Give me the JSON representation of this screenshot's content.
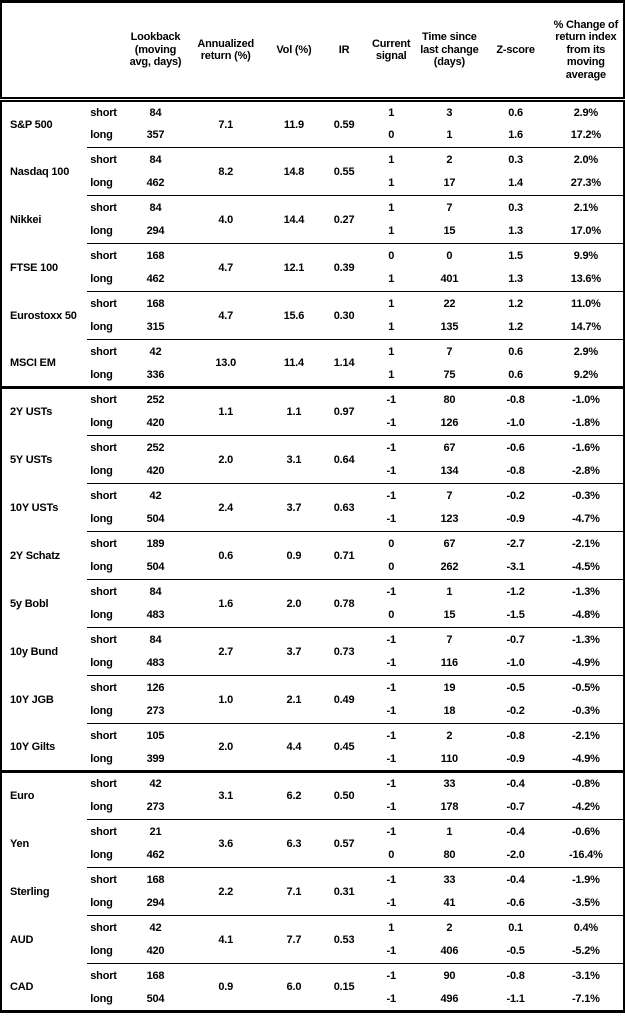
{
  "table": {
    "columns": [
      "",
      "",
      "Lookback (moving avg, days)",
      "Annualized return (%)",
      "Vol (%)",
      "IR",
      "Current signal",
      "Time since last change (days)",
      "Z-score",
      "% Change of return index from its moving average"
    ],
    "sections": [
      {
        "assets": [
          {
            "name": "S&P 500",
            "annualized_return": "7.1",
            "vol": "11.9",
            "ir": "0.59",
            "rows": [
              {
                "horizon": "short",
                "lookback": "84",
                "signal": "1",
                "time_since": "3",
                "z_score": "0.6",
                "pct_change": "2.9%"
              },
              {
                "horizon": "long",
                "lookback": "357",
                "signal": "0",
                "time_since": "1",
                "z_score": "1.6",
                "pct_change": "17.2%"
              }
            ]
          },
          {
            "name": "Nasdaq 100",
            "annualized_return": "8.2",
            "vol": "14.8",
            "ir": "0.55",
            "rows": [
              {
                "horizon": "short",
                "lookback": "84",
                "signal": "1",
                "time_since": "2",
                "z_score": "0.3",
                "pct_change": "2.0%"
              },
              {
                "horizon": "long",
                "lookback": "462",
                "signal": "1",
                "time_since": "17",
                "z_score": "1.4",
                "pct_change": "27.3%"
              }
            ]
          },
          {
            "name": "Nikkei",
            "annualized_return": "4.0",
            "vol": "14.4",
            "ir": "0.27",
            "rows": [
              {
                "horizon": "short",
                "lookback": "84",
                "signal": "1",
                "time_since": "7",
                "z_score": "0.3",
                "pct_change": "2.1%"
              },
              {
                "horizon": "long",
                "lookback": "294",
                "signal": "1",
                "time_since": "15",
                "z_score": "1.3",
                "pct_change": "17.0%"
              }
            ]
          },
          {
            "name": "FTSE 100",
            "annualized_return": "4.7",
            "vol": "12.1",
            "ir": "0.39",
            "rows": [
              {
                "horizon": "short",
                "lookback": "168",
                "signal": "0",
                "time_since": "0",
                "z_score": "1.5",
                "pct_change": "9.9%"
              },
              {
                "horizon": "long",
                "lookback": "462",
                "signal": "1",
                "time_since": "401",
                "z_score": "1.3",
                "pct_change": "13.6%"
              }
            ]
          },
          {
            "name": "Eurostoxx 50",
            "annualized_return": "4.7",
            "vol": "15.6",
            "ir": "0.30",
            "rows": [
              {
                "horizon": "short",
                "lookback": "168",
                "signal": "1",
                "time_since": "22",
                "z_score": "1.2",
                "pct_change": "11.0%"
              },
              {
                "horizon": "long",
                "lookback": "315",
                "signal": "1",
                "time_since": "135",
                "z_score": "1.2",
                "pct_change": "14.7%"
              }
            ]
          },
          {
            "name": "MSCI EM",
            "annualized_return": "13.0",
            "vol": "11.4",
            "ir": "1.14",
            "rows": [
              {
                "horizon": "short",
                "lookback": "42",
                "signal": "1",
                "time_since": "7",
                "z_score": "0.6",
                "pct_change": "2.9%"
              },
              {
                "horizon": "long",
                "lookback": "336",
                "signal": "1",
                "time_since": "75",
                "z_score": "0.6",
                "pct_change": "9.2%"
              }
            ]
          }
        ]
      },
      {
        "assets": [
          {
            "name": "2Y USTs",
            "annualized_return": "1.1",
            "vol": "1.1",
            "ir": "0.97",
            "rows": [
              {
                "horizon": "short",
                "lookback": "252",
                "signal": "-1",
                "time_since": "80",
                "z_score": "-0.8",
                "pct_change": "-1.0%"
              },
              {
                "horizon": "long",
                "lookback": "420",
                "signal": "-1",
                "time_since": "126",
                "z_score": "-1.0",
                "pct_change": "-1.8%"
              }
            ]
          },
          {
            "name": "5Y USTs",
            "annualized_return": "2.0",
            "vol": "3.1",
            "ir": "0.64",
            "rows": [
              {
                "horizon": "short",
                "lookback": "252",
                "signal": "-1",
                "time_since": "67",
                "z_score": "-0.6",
                "pct_change": "-1.6%"
              },
              {
                "horizon": "long",
                "lookback": "420",
                "signal": "-1",
                "time_since": "134",
                "z_score": "-0.8",
                "pct_change": "-2.8%"
              }
            ]
          },
          {
            "name": "10Y USTs",
            "annualized_return": "2.4",
            "vol": "3.7",
            "ir": "0.63",
            "rows": [
              {
                "horizon": "short",
                "lookback": "42",
                "signal": "-1",
                "time_since": "7",
                "z_score": "-0.2",
                "pct_change": "-0.3%"
              },
              {
                "horizon": "long",
                "lookback": "504",
                "signal": "-1",
                "time_since": "123",
                "z_score": "-0.9",
                "pct_change": "-4.7%"
              }
            ]
          },
          {
            "name": "2Y Schatz",
            "annualized_return": "0.6",
            "vol": "0.9",
            "ir": "0.71",
            "rows": [
              {
                "horizon": "short",
                "lookback": "189",
                "signal": "0",
                "time_since": "67",
                "z_score": "-2.7",
                "pct_change": "-2.1%"
              },
              {
                "horizon": "long",
                "lookback": "504",
                "signal": "0",
                "time_since": "262",
                "z_score": "-3.1",
                "pct_change": "-4.5%"
              }
            ]
          },
          {
            "name": "5y Bobl",
            "annualized_return": "1.6",
            "vol": "2.0",
            "ir": "0.78",
            "rows": [
              {
                "horizon": "short",
                "lookback": "84",
                "signal": "-1",
                "time_since": "1",
                "z_score": "-1.2",
                "pct_change": "-1.3%"
              },
              {
                "horizon": "long",
                "lookback": "483",
                "signal": "0",
                "time_since": "15",
                "z_score": "-1.5",
                "pct_change": "-4.8%"
              }
            ]
          },
          {
            "name": "10y Bund",
            "annualized_return": "2.7",
            "vol": "3.7",
            "ir": "0.73",
            "rows": [
              {
                "horizon": "short",
                "lookback": "84",
                "signal": "-1",
                "time_since": "7",
                "z_score": "-0.7",
                "pct_change": "-1.3%"
              },
              {
                "horizon": "long",
                "lookback": "483",
                "signal": "-1",
                "time_since": "116",
                "z_score": "-1.0",
                "pct_change": "-4.9%"
              }
            ]
          },
          {
            "name": "10Y JGB",
            "annualized_return": "1.0",
            "vol": "2.1",
            "ir": "0.49",
            "rows": [
              {
                "horizon": "short",
                "lookback": "126",
                "signal": "-1",
                "time_since": "19",
                "z_score": "-0.5",
                "pct_change": "-0.5%"
              },
              {
                "horizon": "long",
                "lookback": "273",
                "signal": "-1",
                "time_since": "18",
                "z_score": "-0.2",
                "pct_change": "-0.3%"
              }
            ]
          },
          {
            "name": "10Y Gilts",
            "annualized_return": "2.0",
            "vol": "4.4",
            "ir": "0.45",
            "rows": [
              {
                "horizon": "short",
                "lookback": "105",
                "signal": "-1",
                "time_since": "2",
                "z_score": "-0.8",
                "pct_change": "-2.1%"
              },
              {
                "horizon": "long",
                "lookback": "399",
                "signal": "-1",
                "time_since": "110",
                "z_score": "-0.9",
                "pct_change": "-4.9%"
              }
            ]
          }
        ]
      },
      {
        "assets": [
          {
            "name": "Euro",
            "annualized_return": "3.1",
            "vol": "6.2",
            "ir": "0.50",
            "rows": [
              {
                "horizon": "short",
                "lookback": "42",
                "signal": "-1",
                "time_since": "33",
                "z_score": "-0.4",
                "pct_change": "-0.8%"
              },
              {
                "horizon": "long",
                "lookback": "273",
                "signal": "-1",
                "time_since": "178",
                "z_score": "-0.7",
                "pct_change": "-4.2%"
              }
            ]
          },
          {
            "name": "Yen",
            "annualized_return": "3.6",
            "vol": "6.3",
            "ir": "0.57",
            "rows": [
              {
                "horizon": "short",
                "lookback": "21",
                "signal": "-1",
                "time_since": "1",
                "z_score": "-0.4",
                "pct_change": "-0.6%"
              },
              {
                "horizon": "long",
                "lookback": "462",
                "signal": "0",
                "time_since": "80",
                "z_score": "-2.0",
                "pct_change": "-16.4%"
              }
            ]
          },
          {
            "name": "Sterling",
            "annualized_return": "2.2",
            "vol": "7.1",
            "ir": "0.31",
            "rows": [
              {
                "horizon": "short",
                "lookback": "168",
                "signal": "-1",
                "time_since": "33",
                "z_score": "-0.4",
                "pct_change": "-1.9%"
              },
              {
                "horizon": "long",
                "lookback": "294",
                "signal": "-1",
                "time_since": "41",
                "z_score": "-0.6",
                "pct_change": "-3.5%"
              }
            ]
          },
          {
            "name": "AUD",
            "annualized_return": "4.1",
            "vol": "7.7",
            "ir": "0.53",
            "rows": [
              {
                "horizon": "short",
                "lookback": "42",
                "signal": "1",
                "time_since": "2",
                "z_score": "0.1",
                "pct_change": "0.4%"
              },
              {
                "horizon": "long",
                "lookback": "420",
                "signal": "-1",
                "time_since": "406",
                "z_score": "-0.5",
                "pct_change": "-5.2%"
              }
            ]
          },
          {
            "name": "CAD",
            "annualized_return": "0.9",
            "vol": "6.0",
            "ir": "0.15",
            "rows": [
              {
                "horizon": "short",
                "lookback": "168",
                "signal": "-1",
                "time_since": "90",
                "z_score": "-0.8",
                "pct_change": "-3.1%"
              },
              {
                "horizon": "long",
                "lookback": "504",
                "signal": "-1",
                "time_since": "496",
                "z_score": "-1.1",
                "pct_change": "-7.1%"
              }
            ]
          }
        ]
      }
    ]
  }
}
